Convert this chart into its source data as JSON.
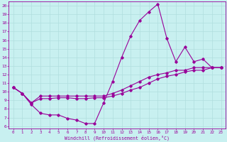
{
  "xlabel": "Windchill (Refroidissement éolien,°C)",
  "xlim": [
    -0.5,
    23.5
  ],
  "ylim": [
    5.7,
    20.5
  ],
  "xticks": [
    0,
    1,
    2,
    3,
    4,
    5,
    6,
    7,
    8,
    9,
    10,
    11,
    12,
    13,
    14,
    15,
    16,
    17,
    18,
    19,
    20,
    21,
    22,
    23
  ],
  "yticks": [
    6,
    7,
    8,
    9,
    10,
    11,
    12,
    13,
    14,
    15,
    16,
    17,
    18,
    19,
    20
  ],
  "line_color": "#990099",
  "bg_color": "#c8f0f0",
  "grid_color": "#b0dede",
  "line1_x": [
    0,
    1,
    2,
    3,
    4,
    5,
    6,
    7,
    8,
    9,
    10,
    11,
    12,
    13,
    14,
    15,
    16,
    17,
    18,
    19,
    20,
    21,
    22,
    23
  ],
  "line1_y": [
    10.5,
    9.8,
    8.5,
    7.5,
    7.3,
    7.3,
    6.9,
    6.7,
    6.3,
    6.3,
    8.7,
    11.2,
    14.0,
    16.5,
    18.3,
    19.3,
    20.2,
    16.2,
    13.5,
    15.2,
    13.5,
    13.8,
    12.8,
    12.8
  ],
  "line2_x": [
    0,
    1,
    2,
    3,
    4,
    5,
    6,
    7,
    8,
    9,
    10,
    11,
    12,
    13,
    14,
    15,
    16,
    17,
    18,
    19,
    20,
    21,
    22,
    23
  ],
  "line2_y": [
    10.5,
    9.8,
    8.7,
    9.2,
    9.2,
    9.3,
    9.3,
    9.2,
    9.2,
    9.3,
    9.3,
    9.5,
    9.8,
    10.2,
    10.5,
    11.0,
    11.5,
    11.8,
    12.0,
    12.3,
    12.5,
    12.5,
    12.8,
    12.8
  ],
  "line3_x": [
    0,
    1,
    2,
    3,
    4,
    5,
    6,
    7,
    8,
    9,
    10,
    11,
    12,
    13,
    14,
    15,
    16,
    17,
    18,
    19,
    20,
    21,
    22,
    23
  ],
  "line3_y": [
    10.5,
    9.8,
    8.7,
    9.5,
    9.5,
    9.5,
    9.5,
    9.5,
    9.5,
    9.5,
    9.5,
    9.8,
    10.2,
    10.7,
    11.2,
    11.7,
    12.0,
    12.2,
    12.5,
    12.5,
    12.8,
    12.8,
    12.8,
    12.8
  ]
}
